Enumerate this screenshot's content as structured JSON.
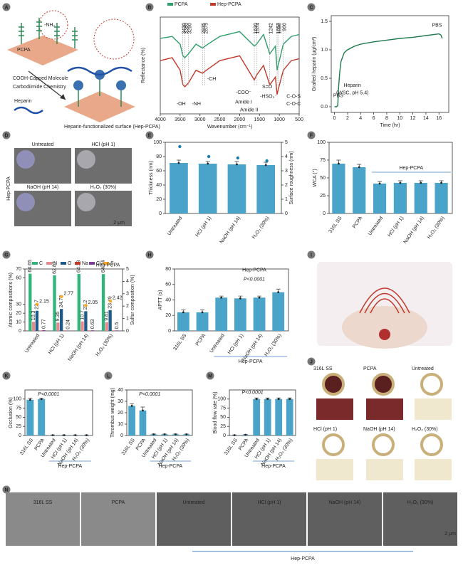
{
  "panels": [
    "A",
    "B",
    "C",
    "D",
    "E",
    "F",
    "G",
    "H",
    "I",
    "J",
    "K",
    "L",
    "M",
    "N"
  ],
  "panel_A": {
    "surface": "PCPA",
    "amine": "-NH₂",
    "molecule": "COOH-Capped Molecule",
    "chemistry": "Carbodiimide Chemistry",
    "heparin": "Heparin",
    "result": "Heparin-functionalized surface (Hep-PCPA)"
  },
  "panel_D": {
    "images": [
      "Untreated",
      "HCl (pH 1)",
      "NaOH (pH 14)",
      "H₂O₂ (30%)"
    ],
    "scale": "2 μm",
    "group": "Hep-PCPA"
  },
  "panel_J": {
    "images": [
      "316L SS",
      "PCPA",
      "Untreated",
      "HCl (pH 1)",
      "NaOH (pH 14)",
      "H₂O₂ (30%)"
    ]
  },
  "panel_N": {
    "images": [
      "316L SS",
      "PCPA",
      "Untreated",
      "HCl (pH 1)",
      "NaOH (pH 14)",
      "H₂O₂ (30%)"
    ],
    "scale": "2 μm",
    "group": "Hep-PCPA"
  },
  "chart_data": [
    {
      "type": "line",
      "xlabel": "Wavenumber (cm⁻¹)",
      "ylabel": "Reflectance (%)",
      "x": [
        4000,
        3700,
        3500,
        3430,
        3380,
        3290,
        3100,
        2935,
        2875,
        2500,
        2000,
        1630,
        1574,
        1400,
        1242,
        1100,
        1057,
        1030,
        900,
        700,
        500
      ],
      "series": [
        {
          "name": "PCPA",
          "color": "#2e9e6a",
          "values": [
            0.78,
            0.8,
            0.72,
            0.6,
            0.58,
            0.62,
            0.72,
            0.68,
            0.7,
            0.8,
            0.85,
            0.7,
            0.72,
            0.82,
            0.62,
            0.7,
            0.45,
            0.5,
            0.72,
            0.8,
            0.82
          ]
        },
        {
          "name": "Hep-PCPA",
          "color": "#c0392b",
          "values": [
            0.55,
            0.58,
            0.45,
            0.3,
            0.28,
            0.32,
            0.45,
            0.42,
            0.44,
            0.55,
            0.6,
            0.35,
            0.4,
            0.5,
            0.3,
            0.38,
            0.2,
            0.25,
            0.45,
            0.55,
            0.57
          ]
        }
      ],
      "xlim": [
        4000,
        500
      ],
      "xticks": [
        4000,
        3500,
        3000,
        2500,
        2000,
        1500,
        1000,
        500
      ],
      "ylim": [
        0,
        1
      ],
      "legend": "top",
      "peaks": [
        "3430",
        "3380",
        "3290",
        "2935",
        "2875",
        "1630",
        "1574",
        "1242",
        "1057",
        "1030",
        "900"
      ],
      "annotations": [
        "-OH",
        "-NH",
        "-CH",
        "-COO⁻",
        "Amide I",
        "Amide II",
        "S=O",
        "-HSO₃⁻",
        "C-O-S",
        "C-O-C"
      ]
    },
    {
      "type": "line",
      "xlabel": "Time (hr)",
      "ylabel": "Grafted heparin (μg/cm²)",
      "x": [
        0,
        0.3,
        0.5,
        0.6,
        0.8,
        1,
        1.5,
        2,
        3,
        4,
        6,
        8,
        10,
        12,
        14,
        16,
        16.3,
        16.5
      ],
      "series": [
        {
          "color": "#1f7a4d",
          "values": [
            0,
            0,
            0.02,
            0.3,
            0.6,
            0.8,
            0.95,
            1.0,
            1.06,
            1.1,
            1.14,
            1.17,
            1.2,
            1.22,
            1.25,
            1.28,
            1.26,
            1.2
          ]
        }
      ],
      "xlim": [
        -0.5,
        17.5
      ],
      "xticks": [
        0,
        2,
        4,
        6,
        8,
        10,
        12,
        14,
        16
      ],
      "ylim": [
        -0.1,
        1.6
      ],
      "yticks": [
        {
          "value": 0,
          "label": "0.0"
        },
        0.5,
        {
          "value": 1,
          "label": "1.0"
        },
        1.5
      ],
      "annotations": [
        "PBS",
        "Heparin",
        "(WSC, pH 5.4)",
        "PBS"
      ]
    },
    {
      "type": "bar",
      "ylabel": "Thickness (nm)",
      "y2label": "Surface roughness (nm)",
      "categories": [
        "Untreated",
        "HCl (pH 1)",
        "NaOH (pH 14)",
        "H₂O₂ (30%)"
      ],
      "series": [
        {
          "color": "#4aa3c8",
          "values": [
            71,
            70,
            69,
            68
          ],
          "errors": [
            4,
            3,
            4,
            4
          ]
        },
        {
          "color": "#1a7fb0",
          "values": [
            4.7,
            4.0,
            3.9,
            3.7
          ],
          "axis": "y2"
        }
      ],
      "ylim": [
        0,
        100
      ],
      "yticks": [
        0,
        20,
        40,
        60,
        80,
        100
      ],
      "y2lim": [
        0,
        5
      ],
      "y2ticks": [
        0,
        1,
        2,
        3,
        4,
        5
      ]
    },
    {
      "type": "bar",
      "ylabel": "WCA (°)",
      "categories": [
        "316L SS",
        "PCPA",
        "Untreated",
        "HCl (pH 1)",
        "NaOH (pH 14)",
        "H₂O₂ (30%)"
      ],
      "series": [
        {
          "color": "#4aa3c8",
          "values": [
            70,
            65,
            42,
            43,
            43,
            43
          ],
          "errors": [
            5,
            4,
            3,
            3,
            3,
            3
          ]
        }
      ],
      "ylim": [
        0,
        100
      ],
      "yticks": [
        0,
        25,
        50,
        75,
        100
      ],
      "group_label": "Hep-PCPA"
    },
    {
      "type": "bar",
      "ylabel": "Atomic compositions (%)",
      "y2label": "Sulfur composition (%)",
      "categories": [
        "Untreated",
        "HCl (pH 1)",
        "NaOH (pH 14)",
        "H₂O₂ (30%)"
      ],
      "series": [
        {
          "name": "C",
          "color": "#2fb57a",
          "values": [
            64.65,
            62.87,
            64.39,
            64.24
          ],
          "show_values": true
        },
        {
          "name": "N",
          "color": "#e58a8f",
          "values": [
            10.3,
            9.35,
            10.7,
            9.81
          ],
          "show_values": true
        },
        {
          "name": "O",
          "color": "#1f5a8a",
          "values": [
            22.7,
            24.79,
            22.2,
            23.49
          ],
          "show_values": true
        },
        {
          "name": "Na",
          "color": "#c0392b",
          "values": [
            0.4,
            0.3,
            0.4,
            0.3
          ]
        },
        {
          "name": "Cl",
          "color": "#7d3c98",
          "values": [
            0.77,
            0.24,
            0.63,
            0.5
          ],
          "show_values": true
        },
        {
          "name": "S",
          "color": "#f5a623",
          "values": [
            2.15,
            2.77,
            2.05,
            2.42
          ],
          "axis": "y2",
          "show_values": true
        }
      ],
      "ylim": [
        0,
        70
      ],
      "yticks": [
        0,
        10,
        20,
        30,
        60,
        70
      ],
      "y2lim": [
        0,
        5
      ],
      "y2ticks": [
        0,
        1,
        2,
        3,
        4,
        5
      ],
      "legend": "top",
      "annotations": [
        "Hep-PCPA"
      ]
    },
    {
      "type": "bar",
      "ylabel": "APTT (s)",
      "categories": [
        "316L SS",
        "PCPA",
        "Untreated",
        "HCl (pH 1)",
        "NaOH (pH 14)",
        "H₂O₂ (30%)"
      ],
      "series": [
        {
          "color": "#4aa3c8",
          "values": [
            24,
            24,
            43,
            42,
            43,
            50
          ],
          "errors": [
            3,
            3,
            2,
            3,
            2,
            4
          ]
        }
      ],
      "ylim": [
        0,
        80
      ],
      "yticks": [
        0,
        20,
        40,
        60,
        80
      ],
      "group_label": "Hep-PCPA",
      "annotations": [
        "Hep-PCPA",
        "P<0.0001"
      ]
    },
    {
      "type": "bar",
      "ylabel": "Occlusion (%)",
      "categories": [
        "316L SS",
        "PCPA",
        "Untreated",
        "HCl (pH 1)",
        "NaOH (pH 14)",
        "H₂O₂ (30%)"
      ],
      "series": [
        {
          "color": "#4aa3c8",
          "values": [
            98,
            100,
            1,
            1,
            1,
            1
          ],
          "errors": [
            4,
            2,
            0.5,
            0.5,
            0.5,
            0.5
          ]
        }
      ],
      "ylim": [
        0,
        125
      ],
      "yticks": [
        0,
        25,
        50,
        75,
        100
      ],
      "group_label": "Hep-PCPA",
      "annotations": [
        "P<0.0001"
      ]
    },
    {
      "type": "bar",
      "ylabel": "Thrombus weight (mg)",
      "categories": [
        "316L SS",
        "PCPA",
        "Untreated",
        "HCl (pH 1)",
        "NaOH (pH 14)",
        "H₂O₂ (30%)"
      ],
      "series": [
        {
          "color": "#4aa3c8",
          "values": [
            26,
            22,
            1,
            1,
            1,
            1
          ],
          "errors": [
            2,
            3,
            0.3,
            0.3,
            0.3,
            0.3
          ]
        }
      ],
      "ylim": [
        0,
        40
      ],
      "yticks": [
        0,
        10,
        20,
        30,
        40
      ],
      "group_label": "Hep-PCPA",
      "annotations": [
        "P<0.0001"
      ]
    },
    {
      "type": "bar",
      "ylabel": "Blood flow rate (%)",
      "categories": [
        "316L SS",
        "PCPA",
        "Untreated",
        "HCl (pH 1)",
        "NaOH (pH 14)",
        "H₂O₂ (30%)"
      ],
      "series": [
        {
          "color": "#4aa3c8",
          "values": [
            1,
            2,
            100,
            100,
            100,
            100
          ],
          "errors": [
            0.5,
            0.5,
            3,
            3,
            3,
            3
          ]
        }
      ],
      "ylim": [
        0,
        125
      ],
      "yticks": [
        0,
        25,
        50,
        75,
        100
      ],
      "group_label": "Hep-PCPA",
      "annotations": [
        "P<0.0001"
      ]
    }
  ]
}
